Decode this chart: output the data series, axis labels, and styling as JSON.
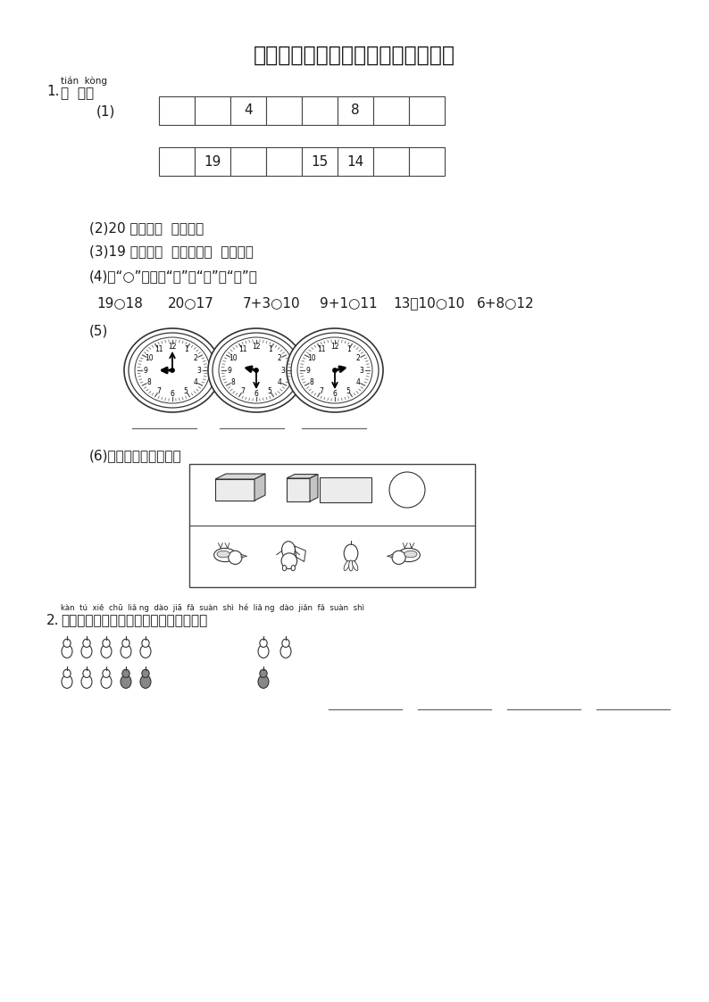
{
  "title": "小学一年级数学上册期末检测考试题",
  "bg_color": "#ffffff",
  "section1_label": "1.",
  "section1_pinyin": "tián  kòng",
  "section1_text": "填  空。",
  "q1_label": "(1)",
  "row1_cells": [
    "",
    "",
    "4",
    "",
    "",
    "8",
    "",
    ""
  ],
  "row2_cells": [
    "",
    "19",
    "",
    "",
    "15",
    "14",
    "",
    ""
  ],
  "q2_text": "(2)20 里面有（  ）个十。",
  "q3_text": "(3)19 里面有（  ）个一和（  ）个十。",
  "q4_text": "(4)在“○”里填上“＞”、“＜”或“＝”。",
  "q4_items": [
    "19○18",
    "20○17",
    "7+3○10",
    "9+1○11",
    "13１10○10",
    "6+8○12"
  ],
  "q5_label": "(5)",
  "q6_text": "(6)把不同类的圈出来。",
  "section2_label": "2.",
  "section2_pinyin": "kàn  tú  xiě  chū  liǎ ng  dào  jiā  fǎ  suàn  shì  hé  liǎ ng  dào  jiǎn  fǎ  suàn  shì",
  "section2_text": "看图写出两道加法算式和两道减法算式。"
}
